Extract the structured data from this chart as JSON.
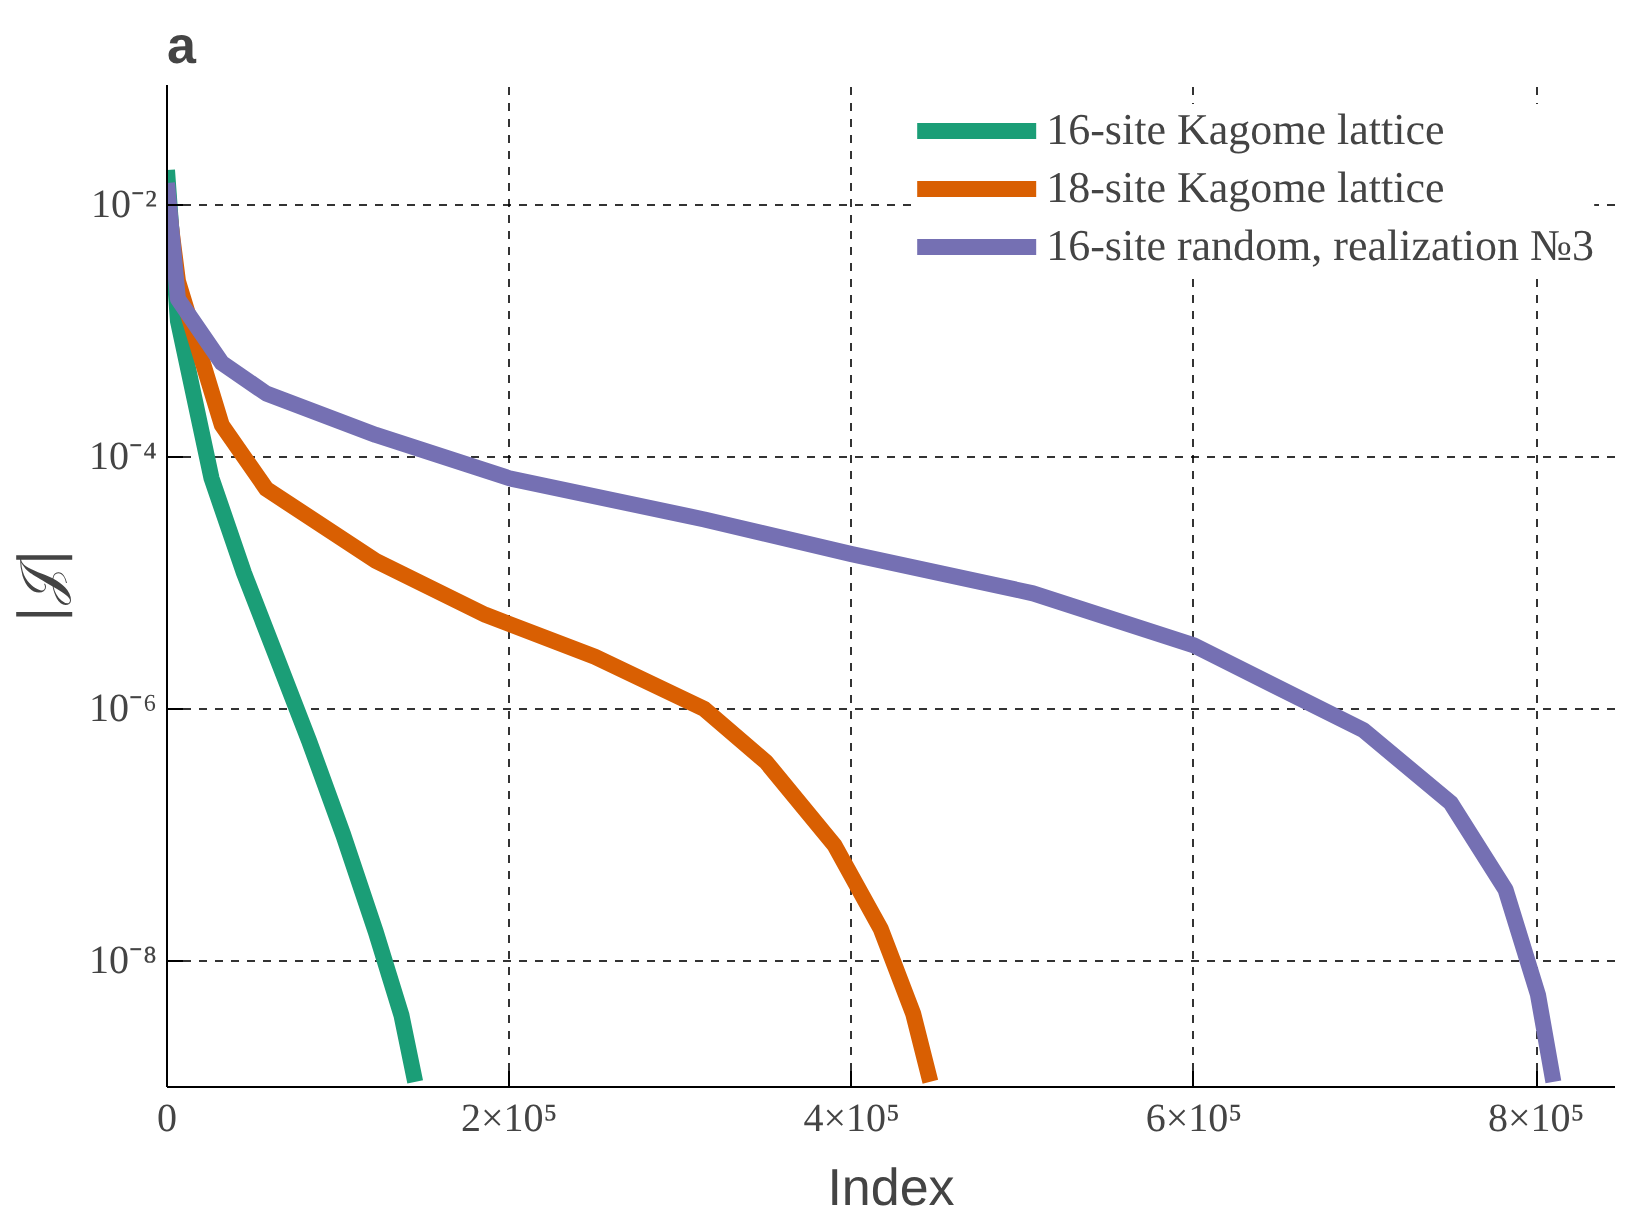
{
  "chart_data": {
    "type": "line",
    "title": "a",
    "xlabel": "Index",
    "ylabel": "|𝒥|",
    "log": "y",
    "grid": true,
    "legend": "top right",
    "line_style": "solid",
    "marker": "none",
    "xlim": [
      0,
      846000
    ],
    "ylim": [
      1e-09,
      0.09
    ],
    "xticks": [
      0,
      {
        "value": 200000,
        "label": "2×10⁵"
      },
      {
        "value": 400000,
        "label": "4×10⁵"
      },
      {
        "value": 600000,
        "label": "6×10⁵"
      },
      {
        "value": 800000,
        "label": "8×10⁵"
      }
    ],
    "yticks": [
      {
        "value": 1e-08,
        "label": "10⁻⁸"
      },
      {
        "value": 1e-06,
        "label": "10⁻⁶"
      },
      {
        "value": 0.0001,
        "label": "10⁻⁴"
      },
      {
        "value": 0.01,
        "label": "10⁻²"
      }
    ],
    "series": [
      {
        "name": "16-site Kagome lattice",
        "color": "#1b9e77",
        "x": [
          0,
          6400,
          26000,
          45000,
          64000,
          83000,
          103000,
          122000,
          137000,
          145000
        ],
        "values": [
          0.019,
          0.0012,
          6.8e-05,
          1.2e-05,
          2.6e-06,
          5.6e-07,
          1e-07,
          1.7e-08,
          3.7e-09,
          1.1e-09
        ]
      },
      {
        "name": "18-site Kagome lattice",
        "color": "#d95f02",
        "x": [
          0,
          6400,
          32000,
          58000,
          122000,
          186000,
          250000,
          314000,
          350000,
          390000,
          417000,
          436000,
          446000
        ],
        "values": [
          0.012,
          0.0025,
          0.00018,
          5.6e-05,
          1.5e-05,
          5.6e-06,
          2.6e-06,
          1e-06,
          3.8e-07,
          8.3e-08,
          1.8e-08,
          3.8e-09,
          1.1e-09
        ]
      },
      {
        "name": "16-site random, realization №3",
        "color": "#7570b3",
        "x": [
          0,
          6400,
          32000,
          58000,
          122000,
          200000,
          314000,
          400000,
          506000,
          600000,
          699000,
          750000,
          782000,
          801000,
          810000
        ],
        "values": [
          0.015,
          0.0018,
          0.00056,
          0.00032,
          0.00015,
          6.8e-05,
          3.2e-05,
          1.7e-05,
          8.3e-06,
          3.2e-06,
          6.8e-07,
          1.8e-07,
          3.7e-08,
          5.4e-09,
          1.1e-09
        ]
      }
    ]
  }
}
